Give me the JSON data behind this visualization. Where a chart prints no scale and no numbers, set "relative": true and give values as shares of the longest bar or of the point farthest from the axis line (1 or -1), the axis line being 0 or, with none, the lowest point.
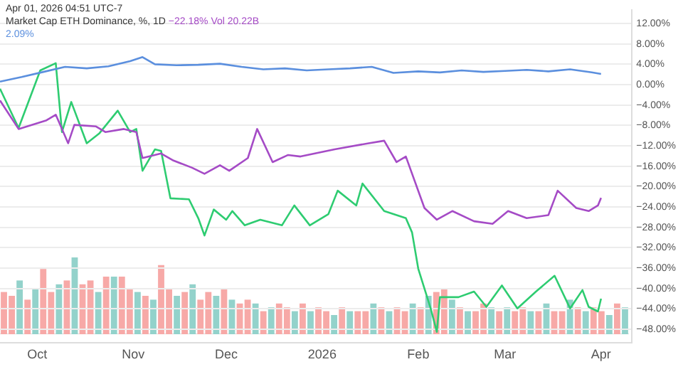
{
  "chart_data": [
    {
      "type": "line",
      "title": "Market Cap ETH Dominance, %, 1D",
      "annotations": [
        "Apr 01, 2026 04:51 UTC-7",
        "−22.18%",
        "Vol 20.22B",
        "2.09%"
      ],
      "xlim": [
        "2025-09-19",
        "2026-04-11"
      ],
      "xticks": [
        {
          "value": "2025-10-01",
          "label": "Oct"
        },
        {
          "value": "2025-11-01",
          "label": "Nov"
        },
        {
          "value": "2025-12-01",
          "label": "Dec"
        },
        {
          "value": "2026-01-01",
          "label": "2026"
        },
        {
          "value": "2026-02-01",
          "label": "Feb"
        },
        {
          "value": "2026-03-01",
          "label": "Mar"
        },
        {
          "value": "2026-04-01",
          "label": "Apr"
        }
      ],
      "ylim": [
        -50.7,
        14.6
      ],
      "yticks": [
        {
          "value": 12,
          "label": "12.00%"
        },
        {
          "value": 8,
          "label": "8.00%"
        },
        {
          "value": 4,
          "label": "4.00%"
        },
        {
          "value": 0,
          "label": "0.00%"
        },
        {
          "value": -4,
          "label": "−4.00%"
        },
        {
          "value": -8,
          "label": "−8.00%"
        },
        {
          "value": -12,
          "label": "−12.00%"
        },
        {
          "value": -16,
          "label": "−16.00%"
        },
        {
          "value": -20,
          "label": "−20.00%"
        },
        {
          "value": -24,
          "label": "−24.00%"
        },
        {
          "value": -28,
          "label": "−28.00%"
        },
        {
          "value": -32,
          "label": "−32.00%"
        },
        {
          "value": -36,
          "label": "−36.00%"
        },
        {
          "value": -40,
          "label": "−40.00%"
        },
        {
          "value": -44,
          "label": "−44.00%"
        },
        {
          "value": -48,
          "label": "−48.00%"
        }
      ],
      "grid": "y",
      "legend": false,
      "marker": "none",
      "line_style": "solid",
      "series": [
        {
          "type": "line",
          "color": "#5b8fde",
          "x": [
            "2025-09-19",
            "2025-09-26",
            "2025-10-03",
            "2025-10-10",
            "2025-10-17",
            "2025-10-24",
            "2025-10-31",
            "2025-11-04",
            "2025-11-08",
            "2025-11-15",
            "2025-11-22",
            "2025-11-29",
            "2025-12-06",
            "2025-12-13",
            "2025-12-20",
            "2025-12-27",
            "2026-01-03",
            "2026-01-10",
            "2026-01-17",
            "2026-01-24",
            "2026-02-01",
            "2026-02-08",
            "2026-02-15",
            "2026-02-22",
            "2026-03-01",
            "2026-03-08",
            "2026-03-15",
            "2026-03-22",
            "2026-03-29",
            "2026-04-01"
          ],
          "values": [
            0.6,
            1.5,
            2.5,
            3.5,
            3.2,
            3.6,
            4.6,
            5.4,
            4.0,
            3.8,
            3.9,
            4.1,
            3.5,
            3.0,
            3.2,
            2.8,
            3.0,
            3.2,
            3.5,
            2.3,
            2.6,
            2.4,
            2.8,
            2.5,
            2.7,
            2.9,
            2.6,
            3.0,
            2.4,
            2.1
          ]
        },
        {
          "type": "line",
          "color": "#a54bc6",
          "x": [
            "2025-09-19",
            "2025-09-25",
            "2025-10-04",
            "2025-10-07",
            "2025-10-11",
            "2025-10-13",
            "2025-10-20",
            "2025-10-23",
            "2025-10-29",
            "2025-11-02",
            "2025-11-04",
            "2025-11-10",
            "2025-11-14",
            "2025-11-20",
            "2025-11-24",
            "2025-11-29",
            "2025-12-02",
            "2025-12-08",
            "2025-12-11",
            "2025-12-16",
            "2025-12-21",
            "2025-12-25",
            "2026-01-05",
            "2026-01-16",
            "2026-01-21",
            "2026-01-25",
            "2026-01-28",
            "2026-02-03",
            "2026-02-07",
            "2026-02-12",
            "2026-02-19",
            "2026-02-25",
            "2026-03-02",
            "2026-03-08",
            "2026-03-15",
            "2026-03-18",
            "2026-03-24",
            "2026-03-28",
            "2026-03-31",
            "2026-04-01"
          ],
          "values": [
            -3.1,
            -8.7,
            -7.0,
            -5.9,
            -11.5,
            -7.9,
            -8.2,
            -9.3,
            -8.7,
            -9.3,
            -14.4,
            -13.5,
            -14.9,
            -16.3,
            -17.5,
            -15.8,
            -16.9,
            -14.4,
            -8.7,
            -15.2,
            -13.8,
            -14.1,
            -12.7,
            -11.5,
            -11.0,
            -15.2,
            -14.1,
            -24.2,
            -26.5,
            -24.8,
            -26.8,
            -27.3,
            -24.8,
            -26.2,
            -25.6,
            -20.8,
            -24.2,
            -24.8,
            -23.7,
            -22.2
          ]
        },
        {
          "type": "line",
          "color": "#2ecc71",
          "x": [
            "2025-09-19",
            "2025-09-25",
            "2025-10-02",
            "2025-10-07",
            "2025-10-09",
            "2025-10-12",
            "2025-10-17",
            "2025-10-21",
            "2025-10-27",
            "2025-10-31",
            "2025-11-02",
            "2025-11-04",
            "2025-11-08",
            "2025-11-10",
            "2025-11-13",
            "2025-11-19",
            "2025-11-22",
            "2025-11-24",
            "2025-11-27",
            "2025-12-01",
            "2025-12-03",
            "2025-12-07",
            "2025-12-12",
            "2025-12-19",
            "2025-12-23",
            "2025-12-28",
            "2026-01-03",
            "2026-01-06",
            "2026-01-12",
            "2026-01-14",
            "2026-01-21",
            "2026-01-28",
            "2026-01-30",
            "2026-02-01",
            "2026-02-05",
            "2026-02-07",
            "2026-02-08",
            "2026-02-14",
            "2026-02-19",
            "2026-02-23",
            "2026-02-28",
            "2026-03-05",
            "2026-03-11",
            "2026-03-17",
            "2026-03-22",
            "2026-03-26",
            "2026-03-28",
            "2026-03-31",
            "2026-04-01"
          ],
          "values": [
            -0.8,
            -8.5,
            2.8,
            4.2,
            -9.3,
            -3.4,
            -11.5,
            -9.6,
            -5.1,
            -9.3,
            -8.7,
            -16.9,
            -12.7,
            -13.0,
            -22.3,
            -22.5,
            -26.2,
            -29.6,
            -24.5,
            -26.5,
            -24.8,
            -27.6,
            -26.5,
            -27.6,
            -23.7,
            -27.6,
            -25.4,
            -20.8,
            -23.7,
            -19.4,
            -24.8,
            -26.2,
            -29.0,
            -36.1,
            -43.9,
            -48.5,
            -41.7,
            -41.7,
            -40.6,
            -43.6,
            -39.4,
            -43.9,
            -40.6,
            -37.5,
            -43.9,
            -40.3,
            -43.6,
            -44.5,
            -42.0
          ]
        }
      ]
    },
    {
      "type": "bar",
      "relative": true,
      "legend": false,
      "grid": false,
      "categories": [
        null,
        null,
        null,
        null,
        null,
        null,
        null,
        null,
        null,
        null,
        null,
        null,
        null,
        null,
        null,
        null,
        null,
        null,
        null,
        null,
        null,
        null,
        null,
        null,
        null,
        null,
        null,
        null,
        null,
        null,
        null,
        null,
        null,
        null,
        null,
        null,
        null,
        null,
        null,
        null,
        null,
        null,
        null,
        null,
        null,
        null,
        null,
        null,
        null,
        null,
        null,
        null,
        null,
        null,
        null,
        null,
        null,
        null,
        null,
        null,
        null,
        null,
        null,
        null,
        null,
        null,
        null,
        null,
        null,
        null,
        null,
        null,
        null,
        null,
        null,
        null,
        null,
        null,
        null,
        null
      ],
      "values": [
        0.55,
        0.5,
        0.7,
        0.45,
        0.6,
        0.85,
        0.55,
        0.65,
        0.7,
        1.0,
        0.65,
        0.7,
        0.55,
        0.75,
        0.75,
        0.75,
        0.6,
        0.55,
        0.5,
        0.45,
        0.9,
        0.6,
        0.5,
        0.55,
        0.65,
        0.45,
        0.55,
        0.5,
        0.6,
        0.45,
        0.4,
        0.45,
        0.4,
        0.3,
        0.35,
        0.4,
        0.35,
        0.3,
        0.4,
        0.3,
        0.35,
        0.3,
        0.25,
        0.35,
        0.3,
        0.3,
        0.3,
        0.4,
        0.35,
        0.3,
        0.35,
        0.3,
        0.4,
        0.35,
        0.5,
        0.55,
        0.6,
        0.45,
        0.35,
        0.3,
        0.3,
        0.4,
        0.35,
        0.3,
        0.35,
        0.3,
        0.35,
        0.3,
        0.3,
        0.4,
        0.3,
        0.3,
        0.45,
        0.35,
        0.3,
        0.35,
        0.3,
        0.25,
        0.4,
        0.35
      ],
      "colors": [
        "#f7a9a7",
        "#f7a9a7",
        "#93d2cb",
        "#f7a9a7",
        "#93d2cb",
        "#f7a9a7",
        "#f7a9a7",
        "#93d2cb",
        "#f7a9a7",
        "#93d2cb",
        "#f7a9a7",
        "#f7a9a7",
        "#93d2cb",
        "#f7a9a7",
        "#93d2cb",
        "#f7a9a7",
        "#f7a9a7",
        "#93d2cb",
        "#f7a9a7",
        "#93d2cb",
        "#f7a9a7",
        "#f7a9a7",
        "#93d2cb",
        "#f7a9a7",
        "#93d2cb",
        "#f7a9a7",
        "#f7a9a7",
        "#93d2cb",
        "#f7a9a7",
        "#93d2cb",
        "#f7a9a7",
        "#f7a9a7",
        "#93d2cb",
        "#f7a9a7",
        "#93d2cb",
        "#f7a9a7",
        "#f7a9a7",
        "#93d2cb",
        "#f7a9a7",
        "#93d2cb",
        "#f7a9a7",
        "#f7a9a7",
        "#93d2cb",
        "#f7a9a7",
        "#93d2cb",
        "#f7a9a7",
        "#f7a9a7",
        "#93d2cb",
        "#f7a9a7",
        "#93d2cb",
        "#f7a9a7",
        "#f7a9a7",
        "#93d2cb",
        "#f7a9a7",
        "#93d2cb",
        "#f7a9a7",
        "#f7a9a7",
        "#93d2cb",
        "#f7a9a7",
        "#93d2cb",
        "#f7a9a7",
        "#f7a9a7",
        "#93d2cb",
        "#f7a9a7",
        "#93d2cb",
        "#f7a9a7",
        "#f7a9a7",
        "#93d2cb",
        "#f7a9a7",
        "#93d2cb",
        "#f7a9a7",
        "#f7a9a7",
        "#93d2cb",
        "#f7a9a7",
        "#93d2cb",
        "#f7a9a7",
        "#f7a9a7",
        "#93d2cb",
        "#f7a9a7",
        "#93d2cb"
      ]
    }
  ]
}
